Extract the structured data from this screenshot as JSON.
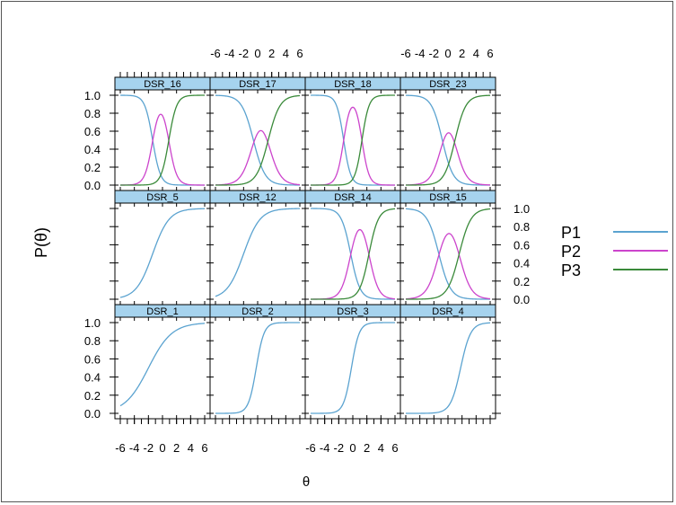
{
  "chart_data": {
    "type": "line",
    "xlabel": "θ",
    "ylabel": "P(θ)",
    "xlim": [
      -6,
      6
    ],
    "ylim": [
      0,
      1
    ],
    "x_ticks": [
      -6,
      -4,
      -2,
      0,
      2,
      4,
      6
    ],
    "x_tick_labels": [
      "-6",
      "-4",
      "-2",
      "0",
      "2",
      "4",
      "6"
    ],
    "y_ticks": [
      0,
      0.2,
      0.4,
      0.6,
      0.8,
      1.0
    ],
    "y_tick_labels": [
      "0.0",
      "0.2",
      "0.4",
      "0.6",
      "0.8",
      "1.0"
    ],
    "legend_position": "right",
    "legend": [
      {
        "name": "P1",
        "color": "#5ba3d0"
      },
      {
        "name": "P2",
        "color": "#cc44cc"
      },
      {
        "name": "P3",
        "color": "#3a8a3a"
      }
    ],
    "strip_color": "#a6d3ee",
    "panels": [
      {
        "title": "DSR_16",
        "curves": [
          {
            "series": "P1",
            "a": -1.8,
            "b": -1.4
          },
          {
            "series": "P2",
            "a": 1.8,
            "b": -1.4,
            "a2": -1.8,
            "b2": 0.9
          },
          {
            "series": "P3",
            "a": 1.8,
            "b": 0.9
          }
        ]
      },
      {
        "title": "DSR_17",
        "curves": [
          {
            "series": "P1",
            "a": -1.2,
            "b": -0.6
          },
          {
            "series": "P2",
            "a": 1.2,
            "b": -0.6,
            "a2": -1.2,
            "b2": 1.5
          },
          {
            "series": "P3",
            "a": 1.2,
            "b": 1.5
          }
        ]
      },
      {
        "title": "DSR_18",
        "curves": [
          {
            "series": "P1",
            "a": -2.0,
            "b": -1.3
          },
          {
            "series": "P2",
            "a": 2.0,
            "b": -1.3,
            "a2": -2.0,
            "b2": 1.3
          },
          {
            "series": "P3",
            "a": 2.0,
            "b": 1.3
          }
        ]
      },
      {
        "title": "DSR_23",
        "curves": [
          {
            "series": "P1",
            "a": -1.3,
            "b": -0.8
          },
          {
            "series": "P2",
            "a": 1.3,
            "b": -0.8,
            "a2": -1.3,
            "b2": 1.0
          },
          {
            "series": "P3",
            "a": 1.3,
            "b": 1.0
          }
        ]
      },
      {
        "title": "DSR_5",
        "curves": [
          {
            "series": "P1",
            "a": 0.85,
            "b": -1.4
          }
        ]
      },
      {
        "title": "DSR_12",
        "curves": [
          {
            "series": "P1",
            "a": 0.85,
            "b": -2.0
          }
        ]
      },
      {
        "title": "DSR_14",
        "curves": [
          {
            "series": "P1",
            "a": -1.5,
            "b": -0.3
          },
          {
            "series": "P2",
            "a": 1.5,
            "b": -0.3,
            "a2": -1.5,
            "b2": 2.3
          },
          {
            "series": "P3",
            "a": 1.5,
            "b": 2.3
          }
        ]
      },
      {
        "title": "DSR_15",
        "curves": [
          {
            "series": "P1",
            "a": -1.2,
            "b": -1.3
          },
          {
            "series": "P2",
            "a": 1.2,
            "b": -1.3,
            "a2": -1.2,
            "b2": 1.6
          },
          {
            "series": "P3",
            "a": 1.2,
            "b": 1.6
          }
        ]
      },
      {
        "title": "DSR_1",
        "curves": [
          {
            "series": "P1",
            "a": 0.6,
            "b": -2.0
          }
        ]
      },
      {
        "title": "DSR_2",
        "curves": [
          {
            "series": "P1",
            "a": 1.8,
            "b": -0.2
          }
        ]
      },
      {
        "title": "DSR_3",
        "curves": [
          {
            "series": "P1",
            "a": 1.8,
            "b": -0.2
          }
        ]
      },
      {
        "title": "DSR_4",
        "curves": [
          {
            "series": "P1",
            "a": 1.4,
            "b": 1.8
          }
        ]
      }
    ]
  }
}
